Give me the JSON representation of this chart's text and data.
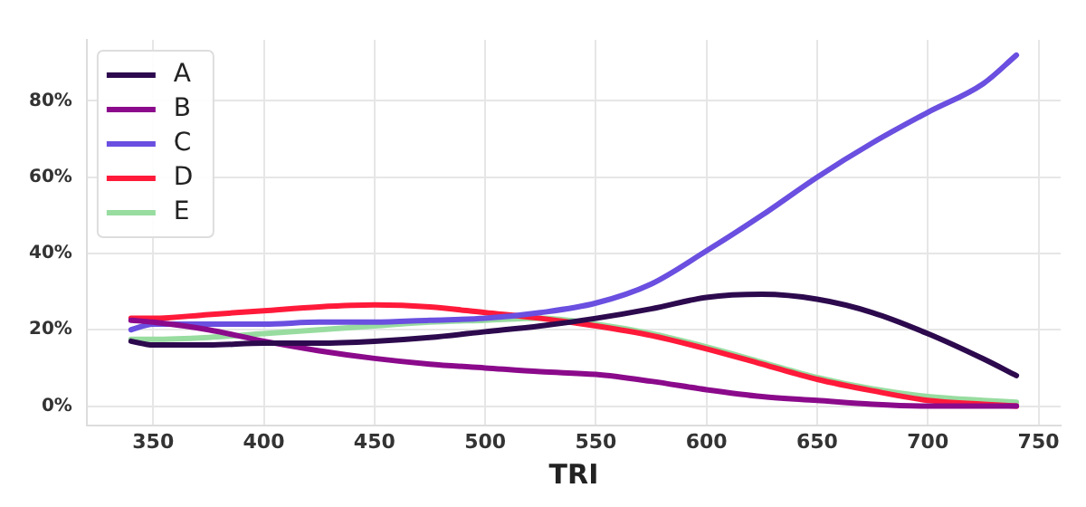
{
  "chart_data": {
    "type": "line",
    "xlabel": "TRI",
    "x": [
      340,
      350,
      375,
      400,
      425,
      450,
      475,
      500,
      525,
      550,
      575,
      600,
      625,
      650,
      675,
      700,
      725,
      740
    ],
    "series": [
      {
        "name": "A",
        "color": "#2d0a4e",
        "values": [
          17,
          16,
          16,
          16.5,
          16.5,
          17,
          18,
          19.5,
          21,
          23,
          25.5,
          28.5,
          29.3,
          28,
          24.5,
          19,
          12.4,
          8
        ]
      },
      {
        "name": "B",
        "color": "#8b0a8b",
        "values": [
          22.5,
          22,
          20,
          17,
          14.5,
          12.5,
          11,
          10,
          9,
          8.3,
          6.5,
          4.3,
          2.5,
          1.5,
          0.5,
          0,
          0,
          0
        ]
      },
      {
        "name": "C",
        "color": "#6a4fe0",
        "values": [
          20,
          21.5,
          21.5,
          21.5,
          22,
          22,
          22.5,
          23,
          24.5,
          27,
          32,
          40.7,
          50,
          60,
          69,
          77,
          84.5,
          92
        ]
      },
      {
        "name": "D",
        "color": "#ff1a3a",
        "values": [
          23,
          23,
          24,
          25,
          26,
          26.5,
          26,
          24.5,
          23,
          21,
          18.5,
          15,
          11,
          7,
          4,
          1.5,
          0.5,
          0
        ]
      },
      {
        "name": "E",
        "color": "#98dca0",
        "values": [
          17.5,
          17.5,
          18,
          19,
          20,
          21,
          22,
          22.5,
          23,
          21.5,
          19,
          15.5,
          11.5,
          7.5,
          4.5,
          2.5,
          1.5,
          1
        ]
      }
    ],
    "xlim": [
      320,
      760
    ],
    "xticks": [
      350,
      400,
      450,
      500,
      550,
      600,
      650,
      700,
      750
    ],
    "ylim": [
      -5,
      96
    ],
    "yticks": [
      {
        "value": 0,
        "label": "0%"
      },
      {
        "value": 20,
        "label": "20%"
      },
      {
        "value": 40,
        "label": "40%"
      },
      {
        "value": 60,
        "label": "60%"
      },
      {
        "value": 80,
        "label": "80%"
      }
    ],
    "grid": true,
    "legend": "top left",
    "marker": "none",
    "line_style": "solid"
  }
}
